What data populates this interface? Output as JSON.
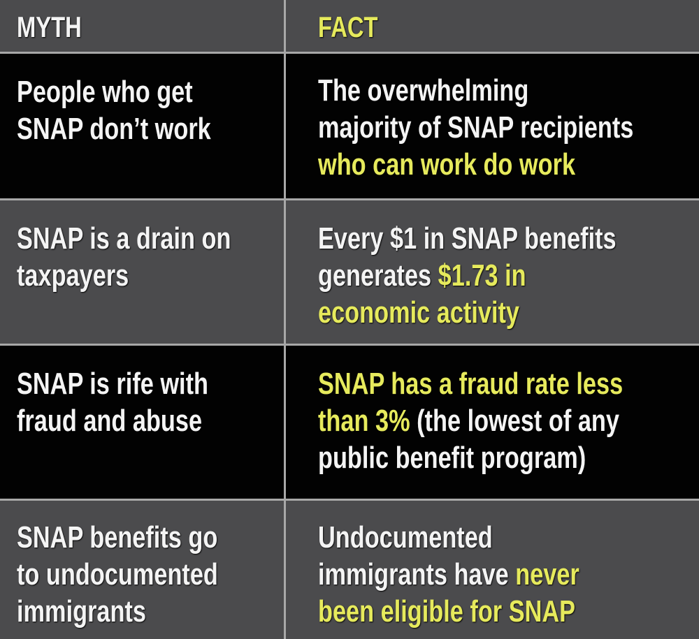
{
  "header": {
    "myth_label": "MYTH",
    "fact_label": "FACT"
  },
  "colors": {
    "highlight": "#e6ea5c",
    "text": "#f4f4f4",
    "row_dark": "#020202",
    "row_gray": "#4b4b4d",
    "grid": "#a8a8a8"
  },
  "rows": [
    {
      "myth": [
        "People who get",
        "SNAP don’t work"
      ],
      "fact": [
        [
          {
            "t": "The overwhelming",
            "h": false
          }
        ],
        [
          {
            "t": "majority of SNAP recipients",
            "h": false
          }
        ],
        [
          {
            "t": "who can work do work",
            "h": true
          }
        ]
      ]
    },
    {
      "myth": [
        "SNAP is a drain on",
        "taxpayers"
      ],
      "fact": [
        [
          {
            "t": "Every $1 in SNAP benefits",
            "h": false
          }
        ],
        [
          {
            "t": "generates ",
            "h": false
          },
          {
            "t": "$1.73 in",
            "h": true
          }
        ],
        [
          {
            "t": "economic activity",
            "h": true
          }
        ]
      ]
    },
    {
      "myth": [
        "SNAP is rife with",
        "fraud and abuse"
      ],
      "fact": [
        [
          {
            "t": "SNAP has a fraud rate less",
            "h": true
          }
        ],
        [
          {
            "t": "than 3%",
            "h": true
          },
          {
            "t": " (the lowest of any",
            "h": false
          }
        ],
        [
          {
            "t": "public benefit program)",
            "h": false
          }
        ]
      ]
    },
    {
      "myth": [
        "SNAP benefits go",
        "to undocumented",
        "immigrants"
      ],
      "fact": [
        [
          {
            "t": "Undocumented",
            "h": false
          }
        ],
        [
          {
            "t": "immigrants have ",
            "h": false
          },
          {
            "t": "never",
            "h": true
          }
        ],
        [
          {
            "t": "been eligible for SNAP",
            "h": true
          }
        ]
      ]
    }
  ]
}
